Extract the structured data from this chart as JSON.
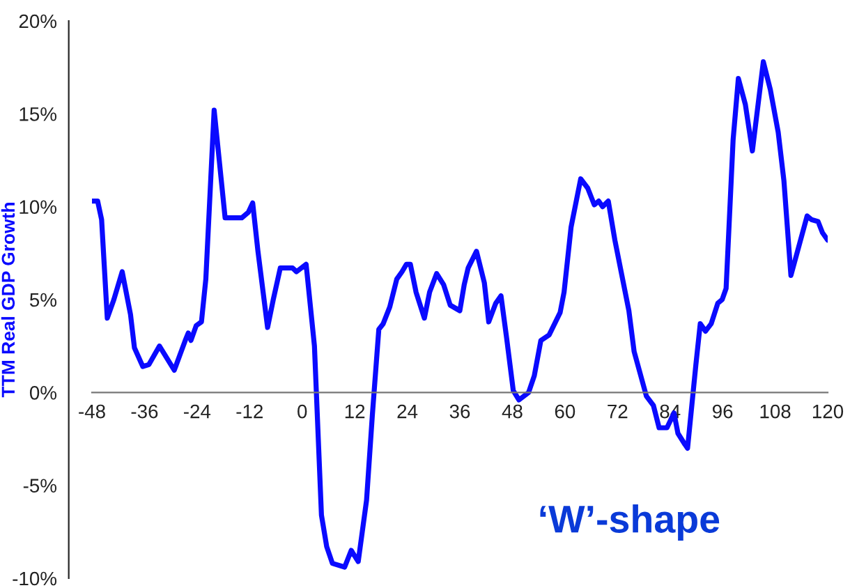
{
  "chart_data": {
    "type": "line",
    "ylabel": "TTM Real GDP Growth",
    "annotations": [
      "‘W’-shape"
    ],
    "x": [
      -48,
      -46.7,
      -45.8,
      -44.5,
      -43,
      -41.1,
      -39.2,
      -38.3,
      -36.4,
      -35,
      -32.6,
      -29.2,
      -26.7,
      -26,
      -25.4,
      -24.2,
      -23,
      -22,
      -20.1,
      -17.6,
      -13.8,
      -12.3,
      -11.3,
      -10.1,
      -7.9,
      -6.6,
      -5,
      -2.2,
      -1.3,
      0.9,
      2.8,
      4.4,
      5.6,
      6.9,
      9.7,
      11.2,
      12.8,
      14.7,
      16,
      17.5,
      18.5,
      20,
      21.6,
      22.8,
      23.8,
      24.7,
      26,
      27.9,
      29.1,
      30.7,
      32.3,
      33.8,
      36,
      37,
      37.9,
      39.8,
      41.6,
      42.6,
      44.2,
      45.4,
      46.7,
      48.2,
      49.5,
      51.7,
      53,
      54.5,
      56.4,
      58.9,
      59.8,
      61.4,
      63.6,
      65.2,
      66.7,
      67.7,
      68.6,
      69.9,
      71.4,
      74.6,
      75.8,
      78.6,
      80.2,
      81.5,
      83.3,
      84.9,
      85.8,
      87.4,
      88,
      89.9,
      90.9,
      92.1,
      93.4,
      94.9,
      95.9,
      96.8,
      98.4,
      99.6,
      101.2,
      102.8,
      105.3,
      106.9,
      108.7,
      110,
      111.6,
      115.3,
      116.3,
      117.8,
      118.8,
      120
    ],
    "series": [
      {
        "color": "#0a0aff",
        "values": [
          10.3,
          10.3,
          9.3,
          4.0,
          5.0,
          6.5,
          4.2,
          2.4,
          1.4,
          1.5,
          2.5,
          1.2,
          2.8,
          3.2,
          2.8,
          3.6,
          3.8,
          6.1,
          15.2,
          9.4,
          9.4,
          9.7,
          10.2,
          7.6,
          3.5,
          5.0,
          6.7,
          6.7,
          6.5,
          6.9,
          2.5,
          -6.6,
          -8.3,
          -9.2,
          -9.4,
          -8.5,
          -9.1,
          -5.8,
          -1.3,
          3.4,
          3.7,
          4.6,
          6.1,
          6.5,
          6.9,
          6.9,
          5.4,
          4.0,
          5.4,
          6.4,
          5.8,
          4.7,
          4.4,
          5.8,
          6.7,
          7.6,
          5.9,
          3.8,
          4.8,
          5.2,
          2.9,
          0.1,
          -0.4,
          0,
          0.9,
          2.8,
          3.1,
          4.3,
          5.4,
          8.9,
          11.5,
          11.0,
          10.1,
          10.3,
          10.0,
          10.3,
          8.2,
          4.4,
          2.2,
          -0.2,
          -0.7,
          -1.9,
          -1.9,
          -1.1,
          -2.2,
          -2.8,
          -3.0,
          1.5,
          3.7,
          3.3,
          3.7,
          4.8,
          5.0,
          5.6,
          13.6,
          16.9,
          15.5,
          13.0,
          17.8,
          16.3,
          14.0,
          11.4,
          6.3,
          9.5,
          9.3,
          9.2,
          8.6,
          8.2
        ]
      }
    ],
    "xlim": [
      -48,
      120
    ],
    "xticks": [
      -48,
      -36,
      -24,
      -12,
      0,
      12,
      24,
      36,
      48,
      60,
      72,
      84,
      96,
      108,
      120
    ],
    "ylim": [
      -10,
      20
    ],
    "yticks": [
      {
        "value": -10,
        "label": "-10%"
      },
      {
        "value": -5,
        "label": "-5%"
      },
      {
        "value": 0,
        "label": "0%"
      },
      {
        "value": 5,
        "label": "5%"
      },
      {
        "value": 10,
        "label": "10%"
      },
      {
        "value": 15,
        "label": "15%"
      },
      {
        "value": 20,
        "label": "20%"
      }
    ],
    "grid": false,
    "legend": false,
    "marker": "none",
    "line_style": "solid"
  }
}
